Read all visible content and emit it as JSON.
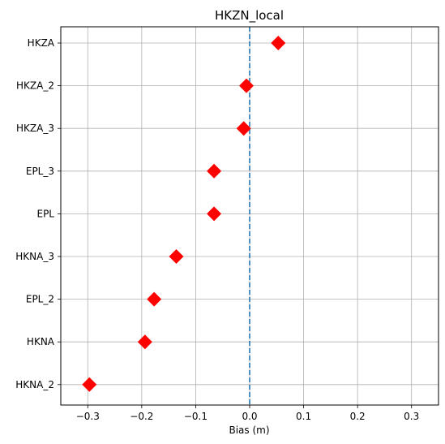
{
  "chart_data": {
    "type": "scatter",
    "title": "HKZN_local",
    "xlabel": "Bias (m)",
    "ylabel": "",
    "xlim": [
      -0.35,
      0.35
    ],
    "xticks": [
      -0.3,
      -0.2,
      -0.1,
      0.0,
      0.1,
      0.2,
      0.3
    ],
    "xtick_labels": [
      "−0.3",
      "−0.2",
      "−0.1",
      "0.0",
      "0.1",
      "0.2",
      "0.3"
    ],
    "categories": [
      "HKZA",
      "HKZA_2",
      "HKZA_3",
      "EPL_3",
      "EPL",
      "HKNA_3",
      "EPL_2",
      "HKNA",
      "HKNA_2"
    ],
    "values": [
      0.053,
      -0.006,
      -0.011,
      -0.066,
      -0.066,
      -0.136,
      -0.177,
      -0.194,
      -0.297
    ],
    "reference_line": {
      "x": 0.0,
      "style": "dashed",
      "color": "#1f77b4"
    },
    "marker": {
      "shape": "diamond",
      "color": "#ff0000"
    },
    "grid": true
  }
}
